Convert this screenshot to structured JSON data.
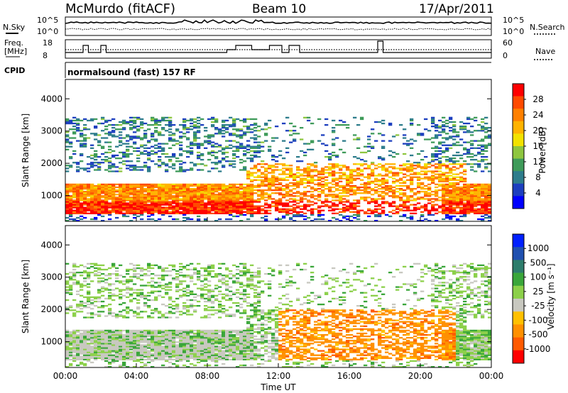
{
  "header": {
    "station": "McMurdo (fitACF)",
    "beam": "Beam 10",
    "date": "17/Apr/2011"
  },
  "strip_labels": {
    "nsky": "N.Sky",
    "nsearch": "N.Search",
    "freq_line1": "Freq.",
    "freq_line2": "[MHz]",
    "nave": "Nave",
    "cpid": "CPID",
    "cpid_value": "normalsound (fast) 157 RF",
    "noise_ticks_left": [
      "10^5",
      "10^0"
    ],
    "noise_ticks_right": [
      "10^5",
      "10^0"
    ],
    "freq_ticks": [
      "18",
      "8"
    ],
    "nave_ticks": [
      "60",
      "0"
    ]
  },
  "colors": {
    "power": [
      "#0000ff",
      "#1d3fbf",
      "#2e7d8c",
      "#3f9b5a",
      "#8ec63f",
      "#f2e200",
      "#ffb300",
      "#ff8000",
      "#ff4a00",
      "#ff0000"
    ],
    "velocity": [
      "#ff0000",
      "#ff5a00",
      "#ff9000",
      "#ffc000",
      "#c8c8c0",
      "#8cd04a",
      "#3aa63a",
      "#2e7d6c",
      "#2050b0",
      "#0020ff"
    ],
    "noise_line": "#000000"
  },
  "chart_data": [
    {
      "type": "heatmap",
      "title": "Power",
      "ylabel": "Slant Range [km]",
      "xlabel": "",
      "ylim": [
        200,
        4600
      ],
      "yticks": [
        1000,
        2000,
        3000,
        4000
      ],
      "xlim": [
        0,
        24
      ],
      "colorbar": {
        "label": "Power [dB]",
        "ticks": [
          4,
          8,
          12,
          16,
          20,
          24,
          28
        ],
        "range": [
          0,
          32
        ]
      },
      "features": [
        {
          "name": "near-range band",
          "x": [
            0,
            24
          ],
          "range_km": [
            400,
            1300
          ],
          "value_db": 22
        },
        {
          "name": "mid-range patches",
          "x": [
            10,
            22
          ],
          "range_km": [
            900,
            2000
          ],
          "value_db": 18
        },
        {
          "name": "far-range scatter",
          "x": [
            0,
            24
          ],
          "range_km": [
            1800,
            3400
          ],
          "value_db": 8
        }
      ]
    },
    {
      "type": "heatmap",
      "title": "Velocity",
      "ylabel": "Slant Range [km]",
      "xlabel": "Time UT",
      "ylim": [
        200,
        4600
      ],
      "yticks": [
        1000,
        2000,
        3000,
        4000
      ],
      "xlim": [
        0,
        24
      ],
      "xticks": [
        "00:00",
        "04:00",
        "08:00",
        "12:00",
        "16:00",
        "20:00",
        "00:00"
      ],
      "colorbar": {
        "label": "Velocity [m s⁻¹]",
        "ticks": [
          "1000",
          "500",
          "100",
          "25",
          "-25",
          "-100",
          "-500",
          "-1000"
        ]
      },
      "features": [
        {
          "name": "ground scatter band",
          "x": [
            0,
            12
          ],
          "range_km": [
            800,
            1400
          ],
          "value_ms": 0
        },
        {
          "name": "positive velocity patches",
          "x": [
            0,
            11
          ],
          "range_km": [
            400,
            2400
          ],
          "value_ms": 150
        },
        {
          "name": "negative velocity patches",
          "x": [
            12,
            22
          ],
          "range_km": [
            800,
            2000
          ],
          "value_ms": -150
        }
      ]
    }
  ]
}
